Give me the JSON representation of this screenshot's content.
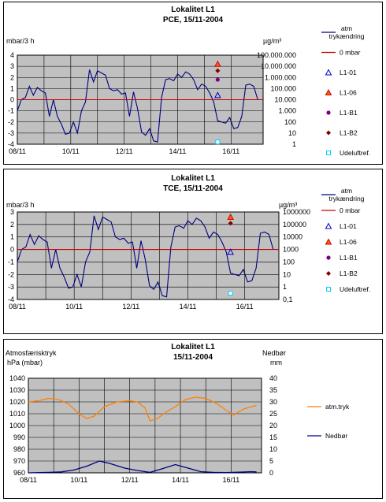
{
  "charts": [
    {
      "title": "Lokalitet L1",
      "subtitle": "PCE, 15/11-2004",
      "left_unit": "mbar/3 h",
      "right_unit": "µg/m³",
      "ylim": [
        -4,
        4
      ],
      "yticks": [
        "4",
        "3",
        "2",
        "1",
        "0",
        "-1",
        "-2",
        "-3",
        "-4"
      ],
      "right_ticks": [
        "100.000.000",
        "10.000.000",
        "1.000.000",
        "100.000",
        "10.000",
        "1.000",
        "100",
        "10",
        "1"
      ],
      "xticks": [
        "08/11",
        "10/11",
        "12/11",
        "14/11",
        "16/11"
      ],
      "legend": [
        {
          "label": "atm trykændring",
          "type": "line",
          "color": "#000080"
        },
        {
          "label": "0 mbar",
          "type": "line",
          "color": "#cc0000"
        },
        {
          "label": "L1-01",
          "type": "triangle",
          "color": "#0000cc"
        },
        {
          "label": "L1-06",
          "type": "triangle",
          "color": "#ff6600"
        },
        {
          "label": "L1-B1",
          "type": "dot",
          "color": "#800080"
        },
        {
          "label": "L1-B2",
          "type": "diamond",
          "color": "#800000"
        },
        {
          "label": "Udeluftref.",
          "type": "square",
          "color": "#00ccff"
        }
      ],
      "chart_data": {
        "type": "line",
        "x_range": [
          8,
          17.2
        ],
        "series": [
          {
            "name": "atm trykændring",
            "color": "#000080",
            "x": [
              8.0,
              8.15,
              8.3,
              8.45,
              8.6,
              8.75,
              8.9,
              9.05,
              9.2,
              9.35,
              9.5,
              9.65,
              9.8,
              9.95,
              10.1,
              10.25,
              10.4,
              10.55,
              10.7,
              10.85,
              11.0,
              11.15,
              11.3,
              11.45,
              11.6,
              11.75,
              11.9,
              12.05,
              12.2,
              12.35,
              12.5,
              12.65,
              12.8,
              12.95,
              13.1,
              13.25,
              13.4,
              13.55,
              13.7,
              13.85,
              14.0,
              14.15,
              14.3,
              14.45,
              14.6,
              14.75,
              14.9,
              15.05,
              15.2,
              15.35,
              15.5,
              15.65,
              15.8,
              15.95,
              16.1,
              16.25,
              16.4,
              16.55,
              16.7,
              16.85,
              17.0
            ],
            "y": [
              -1.0,
              0.0,
              0.2,
              1.2,
              0.4,
              1.1,
              0.8,
              0.6,
              -1.5,
              0.0,
              -1.5,
              -2.2,
              -3.1,
              -3.0,
              -2.0,
              -3.0,
              -1.0,
              -0.2,
              2.7,
              1.6,
              2.6,
              2.4,
              2.2,
              1.0,
              0.8,
              0.9,
              0.5,
              0.6,
              -1.5,
              0.7,
              -0.8,
              -2.9,
              -3.2,
              -2.6,
              -3.7,
              -3.8,
              0.2,
              1.8,
              1.9,
              1.7,
              2.3,
              2.0,
              2.5,
              2.3,
              1.8,
              0.9,
              1.4,
              1.2,
              0.6,
              -0.2,
              -1.9,
              -2.0,
              -2.1,
              -1.6,
              -2.6,
              -2.5,
              -1.5,
              1.3,
              1.4,
              1.2,
              0.0
            ]
          },
          {
            "name": "0 mbar",
            "color": "#cc0000",
            "x": [
              8.0,
              17.2
            ],
            "y": [
              0,
              0
            ]
          }
        ],
        "markers": [
          {
            "name": "L1-06",
            "x": 15.5,
            "y": 3.2,
            "shape": "triangle",
            "color": "#ff6600"
          },
          {
            "name": "L1-B2",
            "x": 15.5,
            "y": 2.6,
            "shape": "diamond",
            "color": "#800000"
          },
          {
            "name": "L1-B1",
            "x": 15.5,
            "y": 1.8,
            "shape": "dot",
            "color": "#800080"
          },
          {
            "name": "L1-01",
            "x": 15.5,
            "y": 0.4,
            "shape": "triangle",
            "color": "#0000cc"
          },
          {
            "name": "Udeluftref.",
            "x": 15.5,
            "y": -3.8,
            "shape": "square",
            "color": "#00ccff"
          }
        ]
      }
    },
    {
      "title": "Lokalitet L1",
      "subtitle": "TCE, 15/11-2004",
      "left_unit": "mbar/3 h",
      "right_unit": "µg/m³",
      "ylim": [
        -4,
        3
      ],
      "yticks": [
        "3",
        "2",
        "1",
        "0",
        "-1",
        "-2",
        "-3",
        "-4"
      ],
      "right_ticks": [
        "1000000",
        "100000",
        "10000",
        "1000",
        "100",
        "10",
        "1",
        "0,1"
      ],
      "xticks": [
        "08/11",
        "10/11",
        "12/11",
        "14/11",
        "16/11"
      ],
      "legend": [
        {
          "label": "atm trykændring",
          "type": "line",
          "color": "#000080"
        },
        {
          "label": "0 mbar",
          "type": "line",
          "color": "#cc0000"
        },
        {
          "label": "L1-01",
          "type": "triangle",
          "color": "#0000cc"
        },
        {
          "label": "L1-06",
          "type": "triangle",
          "color": "#ff6600"
        },
        {
          "label": "L1-B1",
          "type": "dot",
          "color": "#800080"
        },
        {
          "label": "L1-B2",
          "type": "diamond",
          "color": "#800000"
        },
        {
          "label": "Udeluftref.",
          "type": "square",
          "color": "#00ccff"
        }
      ],
      "chart_data": {
        "type": "line",
        "x_range": [
          8,
          17.2
        ],
        "series": [
          {
            "name": "atm trykændring",
            "color": "#000080",
            "x": [
              8.0,
              8.15,
              8.3,
              8.45,
              8.6,
              8.75,
              8.9,
              9.05,
              9.2,
              9.35,
              9.5,
              9.65,
              9.8,
              9.95,
              10.1,
              10.25,
              10.4,
              10.55,
              10.7,
              10.85,
              11.0,
              11.15,
              11.3,
              11.45,
              11.6,
              11.75,
              11.9,
              12.05,
              12.2,
              12.35,
              12.5,
              12.65,
              12.8,
              12.95,
              13.1,
              13.25,
              13.4,
              13.55,
              13.7,
              13.85,
              14.0,
              14.15,
              14.3,
              14.45,
              14.6,
              14.75,
              14.9,
              15.05,
              15.2,
              15.35,
              15.5,
              15.65,
              15.8,
              15.95,
              16.1,
              16.25,
              16.4,
              16.55,
              16.7,
              16.85,
              17.0
            ],
            "y": [
              -1.0,
              0.0,
              0.2,
              1.2,
              0.4,
              1.1,
              0.8,
              0.6,
              -1.5,
              0.0,
              -1.5,
              -2.2,
              -3.1,
              -3.0,
              -2.0,
              -3.0,
              -1.0,
              -0.2,
              2.7,
              1.6,
              2.6,
              2.4,
              2.2,
              1.0,
              0.8,
              0.9,
              0.5,
              0.6,
              -1.5,
              0.7,
              -0.8,
              -2.9,
              -3.2,
              -2.6,
              -3.7,
              -3.8,
              0.2,
              1.8,
              1.9,
              1.7,
              2.3,
              2.0,
              2.5,
              2.3,
              1.8,
              0.9,
              1.4,
              1.2,
              0.6,
              -0.2,
              -1.9,
              -2.0,
              -2.1,
              -1.6,
              -2.6,
              -2.5,
              -1.5,
              1.3,
              1.4,
              1.2,
              0.0
            ]
          },
          {
            "name": "0 mbar",
            "color": "#cc0000",
            "x": [
              8.0,
              17.2
            ],
            "y": [
              0,
              0
            ]
          }
        ],
        "markers": [
          {
            "name": "L1-06",
            "x": 15.5,
            "y": 2.6,
            "shape": "triangle",
            "color": "#ff6600"
          },
          {
            "name": "L1-B2",
            "x": 15.5,
            "y": 2.1,
            "shape": "diamond",
            "color": "#800000"
          },
          {
            "name": "L1-01",
            "x": 15.5,
            "y": -0.2,
            "shape": "triangle",
            "color": "#0000cc"
          },
          {
            "name": "Udeluftref.",
            "x": 15.5,
            "y": -3.5,
            "shape": "square",
            "color": "#00ccff"
          }
        ]
      }
    },
    {
      "title": "Lokalitet L1",
      "subtitle": "15/11-2004",
      "left_label_1": "Atmosfærisktryk",
      "left_label_2": "hPa (mbar)",
      "right_label_1": "Nedbør",
      "right_label_2": "mm",
      "ylim": [
        960,
        1040
      ],
      "y2lim": [
        0,
        40
      ],
      "yticks": [
        "1040",
        "1030",
        "1020",
        "1010",
        "1000",
        "990",
        "980",
        "970",
        "960"
      ],
      "right_ticks": [
        "40",
        "35",
        "30",
        "25",
        "20",
        "15",
        "10",
        "5",
        "0"
      ],
      "xticks": [
        "08/11",
        "10/11",
        "12/11",
        "14/11",
        "16/11"
      ],
      "legend": [
        {
          "label": "atm.tryk",
          "type": "line",
          "color": "#ff8000"
        },
        {
          "label": "Nedbør",
          "type": "line",
          "color": "#000080"
        }
      ],
      "chart_data": {
        "type": "line",
        "x_range": [
          8,
          17.2
        ],
        "series": [
          {
            "name": "atm.tryk",
            "color": "#ff8000",
            "axis": "left",
            "x": [
              8.0,
              8.4,
              8.8,
              9.2,
              9.6,
              10.0,
              10.3,
              10.6,
              11.0,
              11.5,
              12.0,
              12.3,
              12.6,
              12.8,
              13.1,
              13.4,
              13.8,
              14.2,
              14.6,
              15.0,
              15.4,
              15.8,
              16.1,
              16.5,
              16.8,
              17.0
            ],
            "y": [
              1020,
              1021,
              1023,
              1022,
              1018,
              1010,
              1006,
              1008,
              1016,
              1020,
              1021,
              1020,
              1015,
              1004,
              1006,
              1011,
              1016,
              1022,
              1024,
              1023,
              1019,
              1013,
              1009,
              1014,
              1016,
              1017
            ]
          },
          {
            "name": "Nedbør",
            "color": "#000080",
            "axis": "right",
            "x": [
              8.0,
              8.8,
              9.3,
              9.8,
              10.3,
              10.8,
              11.2,
              11.8,
              12.3,
              12.8,
              13.3,
              13.8,
              14.3,
              14.8,
              15.3,
              15.8,
              16.3,
              16.8,
              17.0
            ],
            "y": [
              0,
              0.2,
              0.4,
              1.2,
              2.8,
              5.0,
              4.0,
              2.0,
              1.0,
              0.2,
              1.8,
              3.5,
              2.0,
              0.5,
              0.2,
              0.1,
              0.3,
              0.5,
              0.4
            ]
          }
        ]
      }
    }
  ]
}
